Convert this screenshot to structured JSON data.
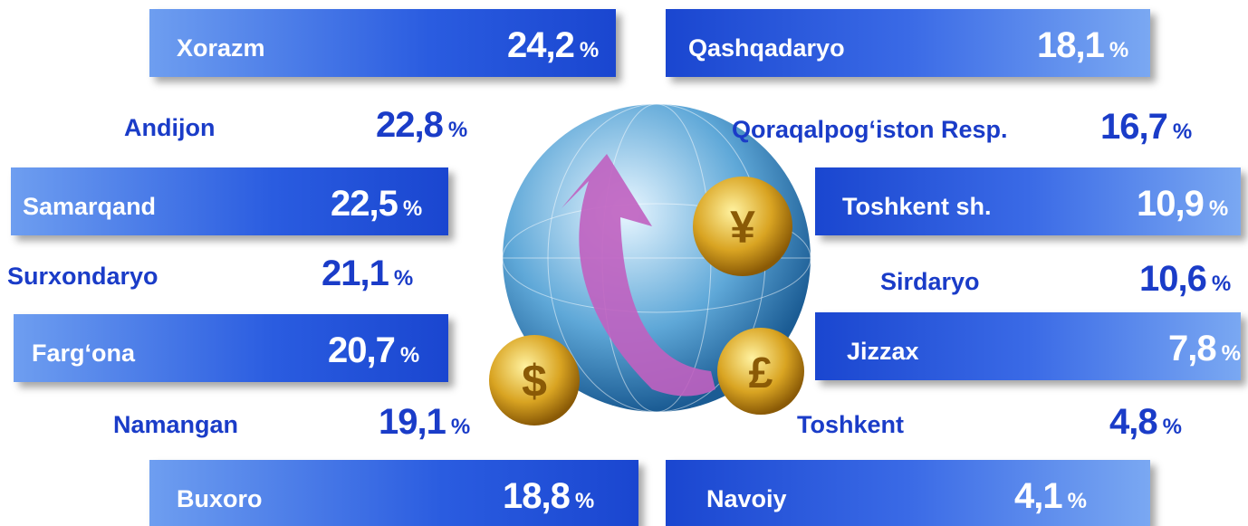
{
  "unit": "%",
  "items": [
    {
      "name": "Xorazm",
      "value": "24,2"
    },
    {
      "name": "Andijon",
      "value": "22,8"
    },
    {
      "name": "Samarqand",
      "value": "22,5"
    },
    {
      "name": "Surxondaryo",
      "value": "21,1"
    },
    {
      "name": "Farg‘ona",
      "value": "20,7"
    },
    {
      "name": "Namangan",
      "value": "19,1"
    },
    {
      "name": "Buxoro",
      "value": "18,8"
    },
    {
      "name": "Qashqadaryo",
      "value": "18,1"
    },
    {
      "name": "Qoraqalpog‘iston Resp.",
      "value": "16,7"
    },
    {
      "name": "Toshkent sh.",
      "value": "10,9"
    },
    {
      "name": "Sirdaryo",
      "value": "10,6"
    },
    {
      "name": "Jizzax",
      "value": "7,8"
    },
    {
      "name": "Toshkent",
      "value": "4,8"
    },
    {
      "name": "Navoiy",
      "value": "4,1"
    }
  ]
}
